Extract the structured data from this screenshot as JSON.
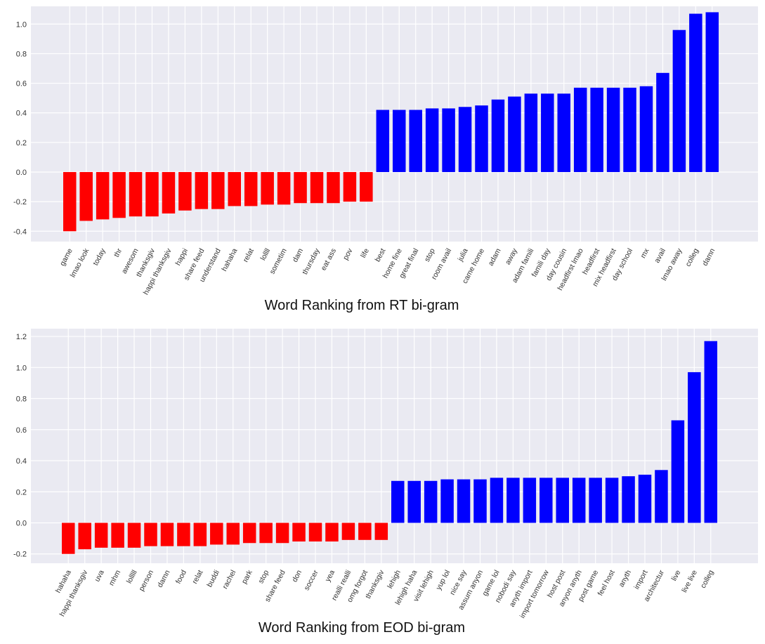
{
  "chart_data": [
    {
      "type": "bar",
      "title": "Word Ranking from RT bi-gram",
      "xlabel": "",
      "ylabel": "",
      "ylim": [
        -0.47,
        1.12
      ],
      "yticks": [
        -0.4,
        -0.2,
        0.0,
        0.2,
        0.4,
        0.6,
        0.8,
        1.0
      ],
      "ytick_labels": [
        "-0.4",
        "-0.2",
        "0.0",
        "0.2",
        "0.4",
        "0.6",
        "0.8",
        "1.0"
      ],
      "grid": true,
      "categories": [
        "game",
        "lmao look",
        "today",
        "thr",
        "awesom",
        "thanksgiv",
        "happi thanksgiv",
        "happi",
        "share feed",
        "understand",
        "hahaha",
        "relat",
        "lollll",
        "sometim",
        "dam",
        "thursday",
        "eat ass",
        "pov",
        "life",
        "best",
        "home fine",
        "great final",
        "stop",
        "room avail",
        "julia",
        "came home",
        "adam",
        "away",
        "adam famili",
        "famili day",
        "day cousin",
        "headfirst lmao",
        "headfirst",
        "mix headfirst",
        "day school",
        "mx",
        "avail",
        "lmao away",
        "colleg",
        "damn"
      ],
      "values": [
        -0.4,
        -0.33,
        -0.32,
        -0.31,
        -0.3,
        -0.3,
        -0.28,
        -0.26,
        -0.25,
        -0.25,
        -0.23,
        -0.23,
        -0.22,
        -0.22,
        -0.21,
        -0.21,
        -0.21,
        -0.2,
        -0.2,
        0.42,
        0.42,
        0.42,
        0.43,
        0.43,
        0.44,
        0.45,
        0.49,
        0.51,
        0.53,
        0.53,
        0.53,
        0.57,
        0.57,
        0.57,
        0.57,
        0.58,
        0.67,
        0.96,
        1.07,
        1.08
      ],
      "colors": {
        "negative": "#ff0000",
        "positive": "#0000ff"
      }
    },
    {
      "type": "bar",
      "title": "Word Ranking from EOD bi-gram",
      "xlabel": "",
      "ylabel": "",
      "ylim": [
        -0.26,
        1.25
      ],
      "yticks": [
        -0.2,
        0.0,
        0.2,
        0.4,
        0.6,
        0.8,
        1.0,
        1.2
      ],
      "ytick_labels": [
        "-0.2",
        "0.0",
        "0.2",
        "0.4",
        "0.6",
        "0.8",
        "1.0",
        "1.2"
      ],
      "grid": true,
      "categories": [
        "hahaha",
        "happi thanksgiv",
        "uva",
        "mhm",
        "lolllll",
        "person",
        "damn",
        "food",
        "relat",
        "buddi",
        "rachel",
        "park",
        "stop",
        "share feed",
        "don",
        "soccer",
        "yea",
        "realli realli",
        "omg forgot",
        "thanksgiv",
        "lehigh",
        "lehigh haha",
        "visit lehigh",
        "yup lol",
        "nice say",
        "assum anyon",
        "game lol",
        "nobodi say",
        "anyth import",
        "import tomorrow",
        "host post",
        "anyon anyth",
        "post game",
        "feel host",
        "anyth",
        "import",
        "architectur",
        "live",
        "live live",
        "colleg"
      ],
      "values": [
        -0.2,
        -0.17,
        -0.16,
        -0.16,
        -0.16,
        -0.15,
        -0.15,
        -0.15,
        -0.15,
        -0.14,
        -0.14,
        -0.13,
        -0.13,
        -0.13,
        -0.12,
        -0.12,
        -0.12,
        -0.11,
        -0.11,
        -0.11,
        0.27,
        0.27,
        0.27,
        0.28,
        0.28,
        0.28,
        0.29,
        0.29,
        0.29,
        0.29,
        0.29,
        0.29,
        0.29,
        0.29,
        0.3,
        0.31,
        0.34,
        0.66,
        0.97,
        1.17
      ],
      "colors": {
        "negative": "#ff0000",
        "positive": "#0000ff"
      }
    }
  ]
}
